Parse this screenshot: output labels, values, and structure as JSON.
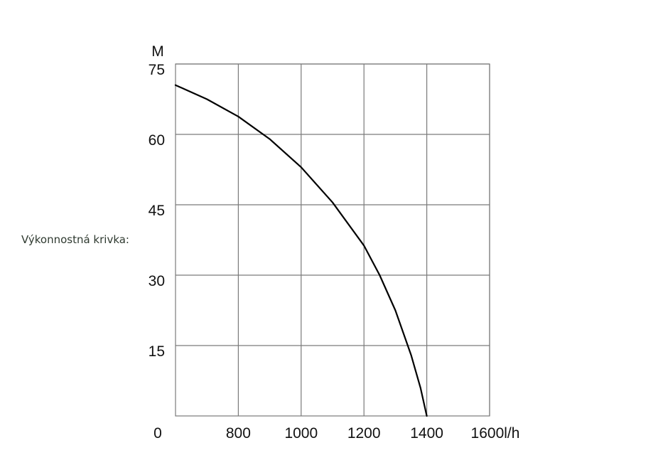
{
  "label": "Výkonnostná krivka:",
  "chart_data": {
    "type": "line",
    "title": "",
    "ylabel": "M",
    "xlabel": "",
    "x_unit_suffix": "l/h",
    "xlim": [
      600,
      1600
    ],
    "ylim": [
      0,
      75
    ],
    "grid": true,
    "x_ticks": [
      800,
      1000,
      1200,
      1400,
      1600
    ],
    "y_ticks": [
      15,
      30,
      45,
      60,
      75
    ],
    "origin_label": "0",
    "series": [
      {
        "color": "#000000",
        "x": [
          600,
          700,
          800,
          900,
          1000,
          1100,
          1200,
          1250,
          1300,
          1350,
          1380,
          1400
        ],
        "y": [
          70.5,
          67.5,
          63.8,
          59.0,
          53.0,
          45.5,
          36.3,
          30.0,
          22.5,
          13.0,
          6.0,
          0
        ]
      }
    ]
  }
}
